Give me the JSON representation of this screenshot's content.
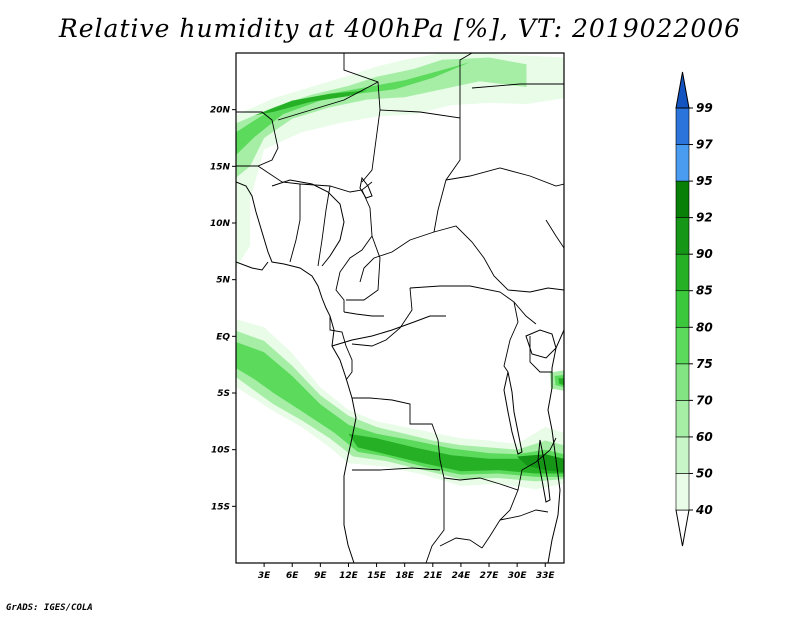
{
  "title": "Relative humidity at 400hPa [%], VT: 2019022006",
  "credit": "GrADS: IGES/COLA",
  "map": {
    "variable": "Relative humidity",
    "level": "400hPa",
    "units": "%",
    "valid_time": "2019022006",
    "lon_range": [
      0,
      35
    ],
    "lat_range": [
      -20,
      25
    ],
    "lat_ticks": [
      {
        "value": 20,
        "label": "20N"
      },
      {
        "value": 15,
        "label": "15N"
      },
      {
        "value": 10,
        "label": "10N"
      },
      {
        "value": 5,
        "label": "5N"
      },
      {
        "value": 0,
        "label": "EQ"
      },
      {
        "value": -5,
        "label": "5S"
      },
      {
        "value": -10,
        "label": "10S"
      },
      {
        "value": -15,
        "label": "15S"
      }
    ],
    "lon_ticks": [
      {
        "value": 3,
        "label": "3E"
      },
      {
        "value": 6,
        "label": "6E"
      },
      {
        "value": 9,
        "label": "9E"
      },
      {
        "value": 12,
        "label": "12E"
      },
      {
        "value": 15,
        "label": "15E"
      },
      {
        "value": 18,
        "label": "18E"
      },
      {
        "value": 21,
        "label": "21E"
      },
      {
        "value": 24,
        "label": "24E"
      },
      {
        "value": 27,
        "label": "27E"
      },
      {
        "value": 30,
        "label": "30E"
      },
      {
        "value": 33,
        "label": "33E"
      }
    ]
  },
  "colorbar": {
    "levels": [
      "40",
      "50",
      "60",
      "70",
      "75",
      "80",
      "85",
      "90",
      "92",
      "95",
      "97",
      "99"
    ],
    "colors": [
      "#ffffff",
      "#e8fce8",
      "#c8f6c8",
      "#a6eea6",
      "#82e482",
      "#5cda5c",
      "#3cc83c",
      "#26b026",
      "#169616",
      "#088008",
      "#4a9cf0",
      "#2a74dc",
      "#1454c0"
    ]
  },
  "humidity_bands": [
    {
      "name": "northern-band",
      "levels": [
        40,
        60,
        75,
        85
      ]
    },
    {
      "name": "southern-band",
      "levels": [
        40,
        60,
        75,
        85,
        90
      ]
    },
    {
      "name": "east-patch",
      "levels": [
        60,
        75,
        85
      ]
    }
  ]
}
